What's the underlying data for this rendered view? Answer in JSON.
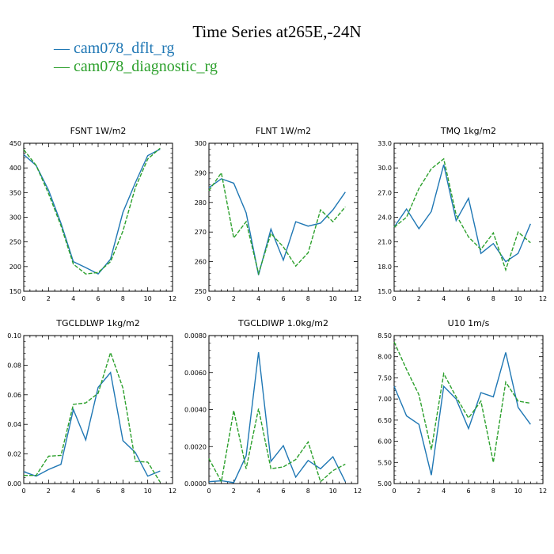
{
  "title": "Time Series at265E,-24N",
  "legend": [
    {
      "name": "cam078_dflt_rg",
      "color": "#1f77b4",
      "style": "solid"
    },
    {
      "name": "cam078_diagnostic_rg",
      "color": "#2ca02c",
      "style": "dashed"
    }
  ],
  "chart_data": [
    {
      "type": "line",
      "title": "FSNT   1W/m2",
      "x": [
        0,
        1,
        2,
        3,
        4,
        5,
        6,
        7,
        8,
        9,
        10,
        11
      ],
      "xlim": [
        0,
        12
      ],
      "xticks": [
        "0",
        "2",
        "4",
        "6",
        "8",
        "10",
        "12"
      ],
      "ylim": [
        150,
        450
      ],
      "yticks": [
        "150",
        "200",
        "250",
        "300",
        "350",
        "400",
        "450"
      ],
      "series": [
        {
          "name": "cam078_dflt_rg",
          "values": [
            427,
            405,
            355,
            288,
            210,
            198,
            185,
            215,
            310,
            370,
            425,
            438
          ]
        },
        {
          "name": "cam078_diagnostic_rg",
          "values": [
            437,
            405,
            348,
            283,
            205,
            185,
            188,
            210,
            272,
            360,
            418,
            440
          ]
        }
      ]
    },
    {
      "type": "line",
      "title": "FLNT   1W/m2",
      "x": [
        0,
        1,
        2,
        3,
        4,
        5,
        6,
        7,
        8,
        9,
        10,
        11
      ],
      "xlim": [
        0,
        12
      ],
      "xticks": [
        "0",
        "2",
        "4",
        "6",
        "8",
        "10",
        "12"
      ],
      "ylim": [
        250,
        300
      ],
      "yticks": [
        "250",
        "260",
        "270",
        "280",
        "290",
        "300"
      ],
      "series": [
        {
          "name": "cam078_dflt_rg",
          "values": [
            285,
            288,
            286.5,
            276.5,
            255.5,
            271,
            260.5,
            273.5,
            272,
            273,
            277.5,
            283.5
          ]
        },
        {
          "name": "cam078_diagnostic_rg",
          "values": [
            284,
            290,
            268,
            273.5,
            256,
            269.5,
            265,
            258.5,
            263,
            277.5,
            273.5,
            278.5
          ]
        }
      ]
    },
    {
      "type": "line",
      "title": "TMQ   1kg/m2",
      "x": [
        0,
        1,
        2,
        3,
        4,
        5,
        6,
        7,
        8,
        9,
        10,
        11
      ],
      "xlim": [
        0,
        12
      ],
      "xticks": [
        "0",
        "2",
        "4",
        "6",
        "8",
        "10",
        "12"
      ],
      "ylim": [
        15,
        33
      ],
      "yticks": [
        "15.0",
        "18.0",
        "21.0",
        "24.0",
        "27.0",
        "30.0",
        "33.0"
      ],
      "series": [
        {
          "name": "cam078_dflt_rg",
          "values": [
            22.8,
            25.0,
            22.6,
            24.7,
            30.4,
            23.6,
            26.3,
            19.6,
            20.8,
            18.6,
            19.6,
            23.2
          ]
        },
        {
          "name": "cam078_diagnostic_rg",
          "values": [
            22.8,
            24.0,
            27.5,
            29.9,
            31.1,
            24.3,
            21.6,
            20.1,
            22.1,
            17.6,
            22.2,
            20.9
          ]
        }
      ]
    },
    {
      "type": "line",
      "title": "TGCLDLWP   1kg/m2",
      "x": [
        0,
        1,
        2,
        3,
        4,
        5,
        6,
        7,
        8,
        9,
        10,
        11
      ],
      "xlim": [
        0,
        12
      ],
      "xticks": [
        "0",
        "2",
        "4",
        "6",
        "8",
        "10",
        "12"
      ],
      "ylim": [
        0,
        0.1
      ],
      "yticks": [
        "0.00",
        "0.02",
        "0.04",
        "0.06",
        "0.08",
        "0.10"
      ],
      "series": [
        {
          "name": "cam078_dflt_rg",
          "values": [
            0.008,
            0.005,
            0.0095,
            0.013,
            0.05,
            0.0295,
            0.065,
            0.075,
            0.029,
            0.021,
            0.005,
            0.0085
          ]
        },
        {
          "name": "cam078_diagnostic_rg",
          "values": [
            0.0055,
            0.0055,
            0.0185,
            0.019,
            0.0535,
            0.0545,
            0.061,
            0.0885,
            0.0645,
            0.015,
            0.0145,
            0.001
          ]
        }
      ]
    },
    {
      "type": "line",
      "title": "TGCLDIWP   1.0kg/m2",
      "x": [
        0,
        1,
        2,
        3,
        4,
        5,
        6,
        7,
        8,
        9,
        10,
        11
      ],
      "xlim": [
        0,
        12
      ],
      "xticks": [
        "0",
        "2",
        "4",
        "6",
        "8",
        "10",
        "12"
      ],
      "ylim": [
        0,
        0.008
      ],
      "yticks": [
        "0.0000",
        "0.0020",
        "0.0040",
        "0.0060",
        "0.0080"
      ],
      "series": [
        {
          "name": "cam078_dflt_rg",
          "values": [
            0.0001,
            0.00015,
            5e-05,
            0.0015,
            0.0071,
            0.0012,
            0.00205,
            0.00035,
            0.00125,
            0.0008,
            0.00145,
            0.0001
          ]
        },
        {
          "name": "cam078_diagnostic_rg",
          "values": [
            0.00135,
            0.0001,
            0.00395,
            0.0008,
            0.00405,
            0.0008,
            0.0009,
            0.0013,
            0.00225,
            0.0001,
            0.0007,
            0.00105
          ]
        }
      ]
    },
    {
      "type": "line",
      "title": "U10   1m/s",
      "x": [
        0,
        1,
        2,
        3,
        4,
        5,
        6,
        7,
        8,
        9,
        10,
        11
      ],
      "xlim": [
        0,
        12
      ],
      "xticks": [
        "0",
        "2",
        "4",
        "6",
        "8",
        "10",
        "12"
      ],
      "ylim": [
        5,
        8.5
      ],
      "yticks": [
        "5.00",
        "5.50",
        "6.00",
        "6.50",
        "7.00",
        "7.50",
        "8.00",
        "8.50"
      ],
      "series": [
        {
          "name": "cam078_dflt_rg",
          "values": [
            7.3,
            6.6,
            6.4,
            5.2,
            7.3,
            7.0,
            6.3,
            7.15,
            7.05,
            8.1,
            6.8,
            6.4
          ]
        },
        {
          "name": "cam078_diagnostic_rg",
          "values": [
            8.35,
            7.7,
            7.1,
            5.8,
            7.6,
            7.05,
            6.55,
            6.95,
            5.5,
            7.4,
            6.95,
            6.9
          ]
        }
      ]
    }
  ]
}
